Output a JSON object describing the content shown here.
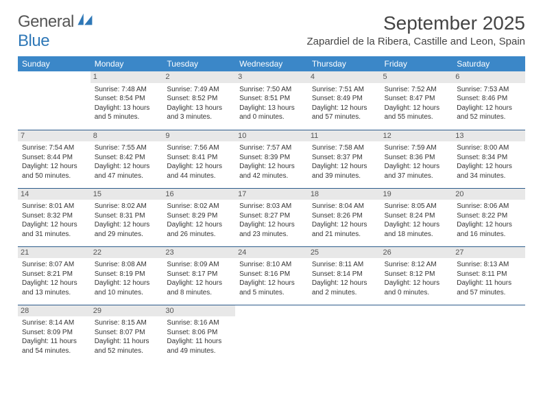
{
  "brand": {
    "word1": "General",
    "word2": "Blue"
  },
  "header": {
    "title": "September 2025",
    "location": "Zapardiel de la Ribera, Castille and Leon, Spain"
  },
  "colors": {
    "header_bg": "#3b87c8",
    "header_text": "#ffffff",
    "daynum_bg": "#e8e8e8",
    "daynum_text": "#555555",
    "row_divider": "#2a5a8a",
    "body_text": "#333333",
    "brand_gray": "#555555",
    "brand_blue": "#2f78b7"
  },
  "typography": {
    "title_fontsize": 28,
    "location_fontsize": 15,
    "dayheader_fontsize": 12,
    "daynum_fontsize": 11,
    "body_fontsize": 10
  },
  "day_headers": [
    "Sunday",
    "Monday",
    "Tuesday",
    "Wednesday",
    "Thursday",
    "Friday",
    "Saturday"
  ],
  "weeks": [
    [
      {
        "n": "",
        "sr": "",
        "ss": "",
        "dl": ""
      },
      {
        "n": "1",
        "sr": "Sunrise: 7:48 AM",
        "ss": "Sunset: 8:54 PM",
        "dl": "Daylight: 13 hours and 5 minutes."
      },
      {
        "n": "2",
        "sr": "Sunrise: 7:49 AM",
        "ss": "Sunset: 8:52 PM",
        "dl": "Daylight: 13 hours and 3 minutes."
      },
      {
        "n": "3",
        "sr": "Sunrise: 7:50 AM",
        "ss": "Sunset: 8:51 PM",
        "dl": "Daylight: 13 hours and 0 minutes."
      },
      {
        "n": "4",
        "sr": "Sunrise: 7:51 AM",
        "ss": "Sunset: 8:49 PM",
        "dl": "Daylight: 12 hours and 57 minutes."
      },
      {
        "n": "5",
        "sr": "Sunrise: 7:52 AM",
        "ss": "Sunset: 8:47 PM",
        "dl": "Daylight: 12 hours and 55 minutes."
      },
      {
        "n": "6",
        "sr": "Sunrise: 7:53 AM",
        "ss": "Sunset: 8:46 PM",
        "dl": "Daylight: 12 hours and 52 minutes."
      }
    ],
    [
      {
        "n": "7",
        "sr": "Sunrise: 7:54 AM",
        "ss": "Sunset: 8:44 PM",
        "dl": "Daylight: 12 hours and 50 minutes."
      },
      {
        "n": "8",
        "sr": "Sunrise: 7:55 AM",
        "ss": "Sunset: 8:42 PM",
        "dl": "Daylight: 12 hours and 47 minutes."
      },
      {
        "n": "9",
        "sr": "Sunrise: 7:56 AM",
        "ss": "Sunset: 8:41 PM",
        "dl": "Daylight: 12 hours and 44 minutes."
      },
      {
        "n": "10",
        "sr": "Sunrise: 7:57 AM",
        "ss": "Sunset: 8:39 PM",
        "dl": "Daylight: 12 hours and 42 minutes."
      },
      {
        "n": "11",
        "sr": "Sunrise: 7:58 AM",
        "ss": "Sunset: 8:37 PM",
        "dl": "Daylight: 12 hours and 39 minutes."
      },
      {
        "n": "12",
        "sr": "Sunrise: 7:59 AM",
        "ss": "Sunset: 8:36 PM",
        "dl": "Daylight: 12 hours and 37 minutes."
      },
      {
        "n": "13",
        "sr": "Sunrise: 8:00 AM",
        "ss": "Sunset: 8:34 PM",
        "dl": "Daylight: 12 hours and 34 minutes."
      }
    ],
    [
      {
        "n": "14",
        "sr": "Sunrise: 8:01 AM",
        "ss": "Sunset: 8:32 PM",
        "dl": "Daylight: 12 hours and 31 minutes."
      },
      {
        "n": "15",
        "sr": "Sunrise: 8:02 AM",
        "ss": "Sunset: 8:31 PM",
        "dl": "Daylight: 12 hours and 29 minutes."
      },
      {
        "n": "16",
        "sr": "Sunrise: 8:02 AM",
        "ss": "Sunset: 8:29 PM",
        "dl": "Daylight: 12 hours and 26 minutes."
      },
      {
        "n": "17",
        "sr": "Sunrise: 8:03 AM",
        "ss": "Sunset: 8:27 PM",
        "dl": "Daylight: 12 hours and 23 minutes."
      },
      {
        "n": "18",
        "sr": "Sunrise: 8:04 AM",
        "ss": "Sunset: 8:26 PM",
        "dl": "Daylight: 12 hours and 21 minutes."
      },
      {
        "n": "19",
        "sr": "Sunrise: 8:05 AM",
        "ss": "Sunset: 8:24 PM",
        "dl": "Daylight: 12 hours and 18 minutes."
      },
      {
        "n": "20",
        "sr": "Sunrise: 8:06 AM",
        "ss": "Sunset: 8:22 PM",
        "dl": "Daylight: 12 hours and 16 minutes."
      }
    ],
    [
      {
        "n": "21",
        "sr": "Sunrise: 8:07 AM",
        "ss": "Sunset: 8:21 PM",
        "dl": "Daylight: 12 hours and 13 minutes."
      },
      {
        "n": "22",
        "sr": "Sunrise: 8:08 AM",
        "ss": "Sunset: 8:19 PM",
        "dl": "Daylight: 12 hours and 10 minutes."
      },
      {
        "n": "23",
        "sr": "Sunrise: 8:09 AM",
        "ss": "Sunset: 8:17 PM",
        "dl": "Daylight: 12 hours and 8 minutes."
      },
      {
        "n": "24",
        "sr": "Sunrise: 8:10 AM",
        "ss": "Sunset: 8:16 PM",
        "dl": "Daylight: 12 hours and 5 minutes."
      },
      {
        "n": "25",
        "sr": "Sunrise: 8:11 AM",
        "ss": "Sunset: 8:14 PM",
        "dl": "Daylight: 12 hours and 2 minutes."
      },
      {
        "n": "26",
        "sr": "Sunrise: 8:12 AM",
        "ss": "Sunset: 8:12 PM",
        "dl": "Daylight: 12 hours and 0 minutes."
      },
      {
        "n": "27",
        "sr": "Sunrise: 8:13 AM",
        "ss": "Sunset: 8:11 PM",
        "dl": "Daylight: 11 hours and 57 minutes."
      }
    ],
    [
      {
        "n": "28",
        "sr": "Sunrise: 8:14 AM",
        "ss": "Sunset: 8:09 PM",
        "dl": "Daylight: 11 hours and 54 minutes."
      },
      {
        "n": "29",
        "sr": "Sunrise: 8:15 AM",
        "ss": "Sunset: 8:07 PM",
        "dl": "Daylight: 11 hours and 52 minutes."
      },
      {
        "n": "30",
        "sr": "Sunrise: 8:16 AM",
        "ss": "Sunset: 8:06 PM",
        "dl": "Daylight: 11 hours and 49 minutes."
      },
      {
        "n": "",
        "sr": "",
        "ss": "",
        "dl": ""
      },
      {
        "n": "",
        "sr": "",
        "ss": "",
        "dl": ""
      },
      {
        "n": "",
        "sr": "",
        "ss": "",
        "dl": ""
      },
      {
        "n": "",
        "sr": "",
        "ss": "",
        "dl": ""
      }
    ]
  ]
}
